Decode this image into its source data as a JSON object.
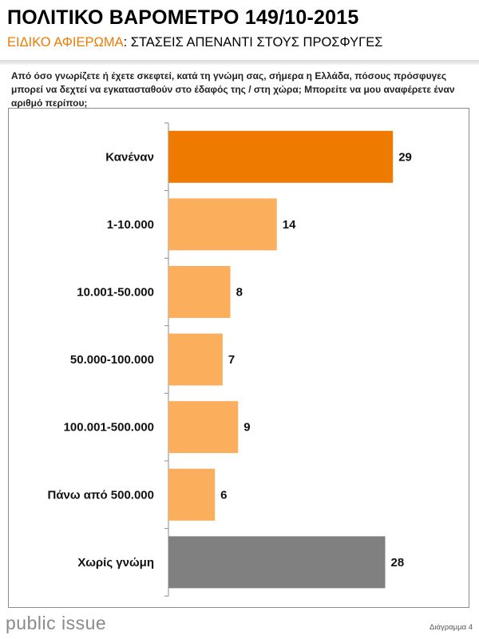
{
  "header": {
    "title": "ΠΟΛΙΤΙΚΟ ΒΑΡΟΜΕΤΡΟ 149/10-2015",
    "subtitle_accent": "ΕΙΔΙΚΟ ΑΦΙΕΡΩΜΑ",
    "subtitle_rest": ": ΣΤΑΣΕΙΣ ΑΠΕΝΑΝΤΙ ΣΤΟΥΣ ΠΡΟΣΦΥΓΕΣ"
  },
  "question": "Από όσο γνωρίζετε ή έχετε σκεφτεί, κατά τη γνώμη σας, σήμερα η Ελλάδα, πόσους πρόσφυγες μπορεί να δεχτεί να εγκατασταθούν στο έδαφός της / στη χώρα; Μπορείτε να μου αναφέρετε έναν αριθμό περίπου;",
  "chart_data": {
    "type": "bar",
    "orientation": "horizontal",
    "categories": [
      "Κανέναν",
      "1-10.000",
      "10.001-50.000",
      "50.000-100.000",
      "100.001-500.000",
      "Πάνω από 500.000",
      "Χωρίς γνώμη"
    ],
    "values": [
      29,
      14,
      8,
      7,
      9,
      6,
      28
    ],
    "colors": [
      "#EE7A00",
      "#FBAF5D",
      "#FBAF5D",
      "#FBAF5D",
      "#FBAF5D",
      "#FBAF5D",
      "#808080"
    ],
    "xlim": [
      0,
      33
    ],
    "grid": false
  },
  "footer": {
    "logo": "public issue",
    "figure_label": "Διάγραμμα 4"
  },
  "colors": {
    "accent": "#EE7A00",
    "bar_light": "#FBAF5D",
    "bar_gray": "#808080"
  }
}
